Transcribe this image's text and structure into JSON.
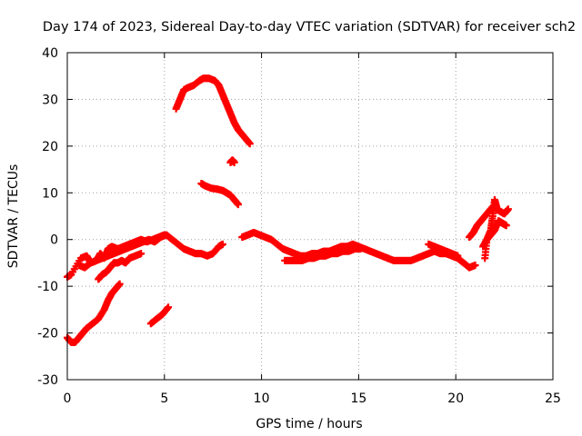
{
  "chart_data": {
    "type": "scatter",
    "title": "Day 174 of 2023, Sidereal Day-to-day VTEC variation (SDTVAR) for receiver sch2",
    "xlabel": "GPS time / hours",
    "ylabel": "SDTVAR / TECUs",
    "xlim": [
      0,
      25
    ],
    "ylim": [
      -30,
      40
    ],
    "xticks": [
      0,
      5,
      10,
      15,
      20,
      25
    ],
    "yticks": [
      -30,
      -20,
      -10,
      0,
      10,
      20,
      30,
      40
    ],
    "grid": true,
    "marker": "plus",
    "series_color": "#ff0000",
    "series": [
      {
        "name": "upper-hump",
        "x": [
          5.6,
          5.8,
          6.0,
          6.2,
          6.5,
          6.8,
          7.0,
          7.3,
          7.6,
          7.8,
          8.0,
          8.2,
          8.4,
          8.6,
          8.8,
          9.0,
          9.2,
          9.4
        ],
        "y": [
          28,
          30,
          32,
          32.5,
          33,
          34,
          34.5,
          34.5,
          34,
          33,
          31,
          29,
          27,
          25,
          23.5,
          22.5,
          21.5,
          20.5
        ]
      },
      {
        "name": "isolated-22h",
        "x": [
          8.4,
          8.5,
          8.6
        ],
        "y": [
          16.5,
          17,
          16.5
        ]
      },
      {
        "name": "mid-10",
        "x": [
          6.9,
          7.1,
          7.4,
          7.7,
          8.0,
          8.2,
          8.4,
          8.6,
          8.8
        ],
        "y": [
          12,
          11.5,
          11,
          10.8,
          10.5,
          10,
          9.5,
          8.5,
          7.5
        ]
      },
      {
        "name": "lower-rise",
        "x": [
          0.0,
          0.2,
          0.4,
          0.6,
          0.8,
          1.0,
          1.3,
          1.6,
          1.9,
          2.1,
          2.3,
          2.5,
          2.7
        ],
        "y": [
          -21,
          -22,
          -22,
          -21,
          -20,
          -19,
          -18,
          -17,
          -15,
          -13,
          -11.5,
          -10.5,
          -9.5
        ]
      },
      {
        "name": "lower-short",
        "x": [
          4.3,
          4.6,
          4.9,
          5.2
        ],
        "y": [
          -18,
          -17,
          -16,
          -14.5
        ]
      },
      {
        "name": "morning-scatter",
        "x": [
          0.0,
          0.2,
          0.7,
          1.0,
          1.2,
          1.5,
          1.7,
          1.9,
          2.1,
          2.3,
          2.6,
          2.9,
          3.2,
          3.5,
          3.8,
          4.1,
          4.4,
          4.7,
          5.0
        ],
        "y": [
          -8,
          -7.5,
          -4,
          -3.5,
          -5,
          -4.5,
          -3,
          -4,
          -2,
          -1.5,
          -2,
          -1.5,
          -1,
          -0.5,
          0,
          -0.5,
          0,
          0.5,
          1
        ]
      },
      {
        "name": "morning-low",
        "x": [
          1.6,
          1.8,
          2.0,
          2.2,
          2.4,
          2.6,
          2.8,
          3.0,
          3.2,
          3.5,
          3.8
        ],
        "y": [
          -8.5,
          -7.5,
          -7,
          -6,
          -5,
          -5,
          -4.5,
          -5,
          -4,
          -3.5,
          -3
        ]
      },
      {
        "name": "morning-mid",
        "x": [
          0.6,
          0.9,
          1.2,
          1.5,
          1.8,
          2.1,
          2.4,
          2.7,
          3.0,
          3.3,
          3.6,
          3.9,
          4.2,
          4.5,
          4.8,
          5.1,
          5.4,
          5.7,
          6.0,
          6.3,
          6.6,
          6.9,
          7.2,
          7.5,
          7.8,
          8.0
        ],
        "y": [
          -5.5,
          -6,
          -5,
          -4.5,
          -4,
          -3.5,
          -3,
          -2.5,
          -2,
          -1.5,
          -1,
          -0.5,
          0,
          -0.5,
          0.5,
          1,
          0,
          -1,
          -2,
          -2.5,
          -3,
          -3,
          -3.5,
          -3,
          -1.5,
          -1
        ]
      },
      {
        "name": "midday",
        "x": [
          9.0,
          9.3,
          9.6,
          9.9,
          10.2,
          10.5,
          10.8,
          11.1,
          11.4,
          11.7,
          12.0,
          12.3,
          12.6,
          12.9,
          13.2,
          13.5,
          13.8,
          14.1,
          14.4,
          14.7,
          15.0,
          15.3,
          15.6,
          15.9,
          16.2,
          16.5
        ],
        "y": [
          0.5,
          1,
          1.5,
          1,
          0.5,
          0,
          -1,
          -2,
          -2.5,
          -3,
          -3.5,
          -3.5,
          -3,
          -3,
          -2.5,
          -2.5,
          -2,
          -1.5,
          -1.5,
          -1,
          -1.5,
          -2,
          -2.5,
          -3,
          -3.5,
          -4
        ]
      },
      {
        "name": "midday-lower",
        "x": [
          11.2,
          11.5,
          11.8,
          12.1,
          12.4,
          12.7,
          13.0,
          13.3,
          13.6,
          13.9,
          14.2,
          14.5,
          14.8,
          15.1
        ],
        "y": [
          -4.5,
          -4.5,
          -4.5,
          -4.5,
          -4.0,
          -4.0,
          -3.5,
          -3.5,
          -3.0,
          -3.0,
          -2.5,
          -2.5,
          -2.0,
          -2.0
        ]
      },
      {
        "name": "afternoon",
        "x": [
          16.5,
          16.8,
          17.1,
          17.4,
          17.7,
          18.0,
          18.3,
          18.6,
          18.9,
          19.2,
          19.5,
          19.8,
          20.1,
          20.4,
          20.7,
          21.0
        ],
        "y": [
          -4,
          -4.5,
          -4.5,
          -4.5,
          -4.5,
          -4,
          -3.5,
          -3,
          -2.5,
          -3,
          -3,
          -3.5,
          -4,
          -5,
          -6,
          -5.5
        ]
      },
      {
        "name": "afternoon-bump",
        "x": [
          18.6,
          18.9,
          19.2,
          19.5,
          19.8,
          20.1
        ],
        "y": [
          -1,
          -1.5,
          -2,
          -2.5,
          -3,
          -3.5
        ]
      },
      {
        "name": "late-evening",
        "x": [
          20.7,
          20.9,
          21.1,
          21.3,
          21.5,
          21.7,
          21.9,
          22.1,
          22.3,
          22.5,
          22.7
        ],
        "y": [
          0.5,
          1.5,
          3,
          4,
          5,
          6,
          7,
          6.5,
          6,
          5.5,
          6.5
        ]
      },
      {
        "name": "late-drop",
        "x": [
          21.4,
          21.6,
          21.8,
          22.0,
          22.2,
          22.4,
          22.6
        ],
        "y": [
          -1.5,
          0,
          1,
          2,
          4,
          3.5,
          3
        ]
      },
      {
        "name": "late-spike",
        "x": [
          21.5,
          21.6,
          21.8,
          21.9,
          22.0,
          22.1
        ],
        "y": [
          -4,
          0,
          2,
          5,
          8.5,
          7
        ]
      }
    ]
  }
}
